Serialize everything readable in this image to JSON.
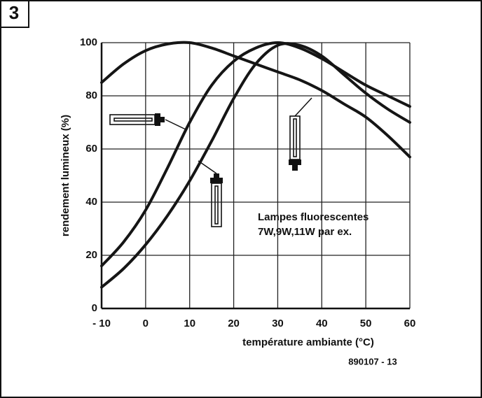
{
  "chart_data": {
    "type": "line",
    "figure_number": "3",
    "x_label": "température ambiante (°C)",
    "y_label": "rendement lumineux (%)",
    "annotation": [
      "Lampes fluorescentes",
      "7W,9W,11W par ex."
    ],
    "reference": "890107 - 13",
    "x": [
      -10,
      -5,
      0,
      5,
      10,
      15,
      20,
      25,
      30,
      35,
      40,
      45,
      50,
      55,
      60
    ],
    "series": [
      {
        "color": "#151515",
        "values": [
          85,
          92,
          97,
          99.5,
          100,
          98,
          95,
          92,
          89,
          86,
          82,
          77,
          72,
          65,
          57
        ]
      },
      {
        "color": "#151515",
        "values": [
          16,
          25,
          37,
          53,
          70,
          84,
          93,
          98,
          100,
          98,
          94,
          89,
          84,
          80,
          76
        ]
      },
      {
        "color": "#151515",
        "values": [
          8,
          15,
          24,
          35,
          48,
          63,
          79,
          92,
          99,
          99,
          95,
          88,
          81,
          75,
          70
        ]
      }
    ],
    "xlim": [
      -10,
      60
    ],
    "xticks": [
      {
        "value": -10,
        "label": "- 10"
      },
      0,
      10,
      20,
      30,
      40,
      50,
      60
    ],
    "ylim": [
      0,
      100
    ],
    "yticks": [
      0,
      20,
      40,
      60,
      80,
      100
    ],
    "grid": true
  }
}
